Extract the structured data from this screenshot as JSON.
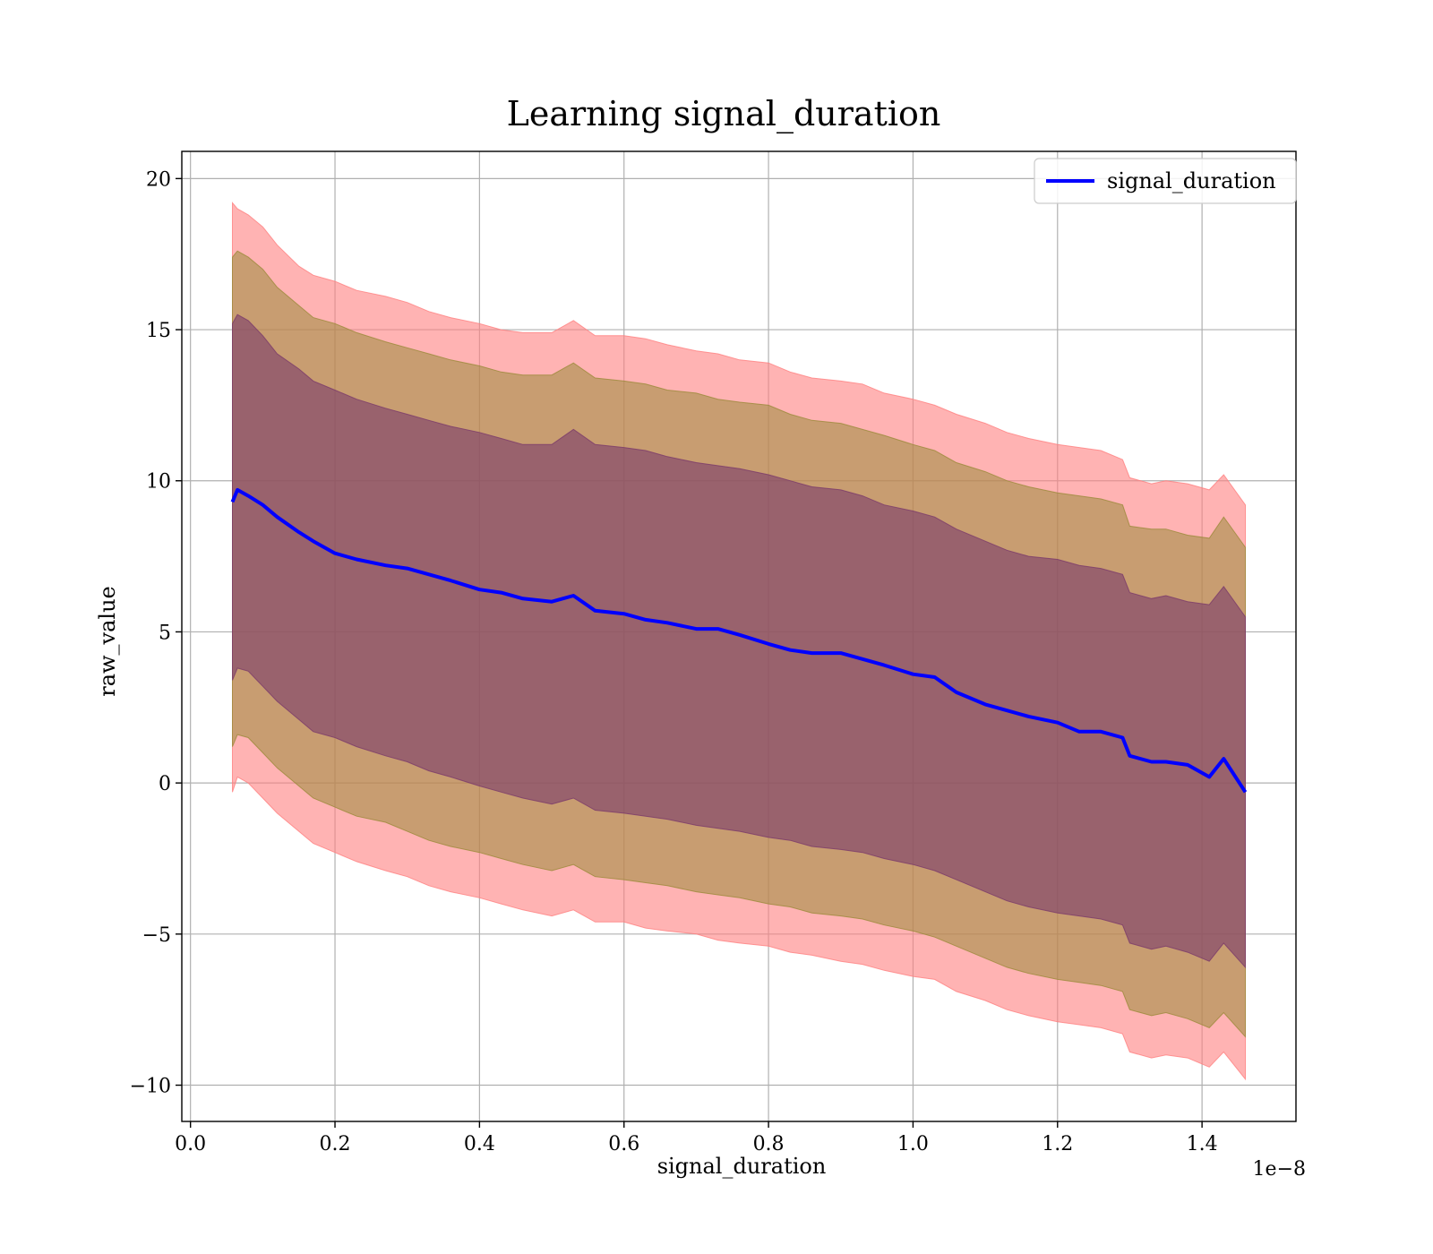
{
  "chart_data": {
    "type": "line",
    "title": "Learning signal_duration",
    "xlabel": "signal_duration",
    "ylabel": "raw_value",
    "x_offset_text": "1e−8",
    "xlim": [
      -0.012,
      1.53
    ],
    "ylim": [
      -11.2,
      20.9
    ],
    "xticks": [
      0.0,
      0.2,
      0.4,
      0.6,
      0.8,
      1.0,
      1.2,
      1.4
    ],
    "xtick_labels": [
      "0.0",
      "0.2",
      "0.4",
      "0.6",
      "0.8",
      "1.0",
      "1.2",
      "1.4"
    ],
    "yticks": [
      -10,
      -5,
      0,
      5,
      10,
      15,
      20
    ],
    "ytick_labels": [
      "−10",
      "−5",
      "0",
      "5",
      "10",
      "15",
      "20"
    ],
    "grid": true,
    "legend_position": "top-right",
    "colors": {
      "line": "#0000ff",
      "band_outer": "#ff8080",
      "band_middle": "#9b8a3a",
      "band_inner": "#7a3a6a"
    },
    "series": [
      {
        "name": "signal_duration",
        "x": [
          0.058,
          0.065,
          0.08,
          0.1,
          0.12,
          0.15,
          0.17,
          0.2,
          0.23,
          0.27,
          0.3,
          0.33,
          0.36,
          0.4,
          0.43,
          0.46,
          0.5,
          0.53,
          0.56,
          0.6,
          0.63,
          0.66,
          0.7,
          0.73,
          0.76,
          0.8,
          0.83,
          0.86,
          0.9,
          0.93,
          0.96,
          1.0,
          1.03,
          1.06,
          1.1,
          1.13,
          1.16,
          1.2,
          1.23,
          1.26,
          1.29,
          1.3,
          1.33,
          1.35,
          1.38,
          1.41,
          1.43,
          1.46
        ],
        "y": [
          9.3,
          9.7,
          9.5,
          9.2,
          8.8,
          8.3,
          8.0,
          7.6,
          7.4,
          7.2,
          7.1,
          6.9,
          6.7,
          6.4,
          6.3,
          6.1,
          6.0,
          6.2,
          5.7,
          5.6,
          5.4,
          5.3,
          5.1,
          5.1,
          4.9,
          4.6,
          4.4,
          4.3,
          4.3,
          4.1,
          3.9,
          3.6,
          3.5,
          3.0,
          2.6,
          2.4,
          2.2,
          2.0,
          1.7,
          1.7,
          1.5,
          0.9,
          0.7,
          0.7,
          0.6,
          0.2,
          0.8,
          -0.3
        ],
        "bands": [
          {
            "name": "outer",
            "upper": [
              19.2,
              19.0,
              18.8,
              18.4,
              17.8,
              17.1,
              16.8,
              16.6,
              16.3,
              16.1,
              15.9,
              15.6,
              15.4,
              15.2,
              15.0,
              14.9,
              14.9,
              15.3,
              14.8,
              14.8,
              14.7,
              14.5,
              14.3,
              14.2,
              14.0,
              13.9,
              13.6,
              13.4,
              13.3,
              13.2,
              12.9,
              12.7,
              12.5,
              12.2,
              11.9,
              11.6,
              11.4,
              11.2,
              11.1,
              11.0,
              10.7,
              10.1,
              9.9,
              10.0,
              9.9,
              9.7,
              10.2,
              9.2
            ],
            "lower": [
              -0.3,
              0.2,
              0.0,
              -0.5,
              -1.0,
              -1.6,
              -2.0,
              -2.3,
              -2.6,
              -2.9,
              -3.1,
              -3.4,
              -3.6,
              -3.8,
              -4.0,
              -4.2,
              -4.4,
              -4.2,
              -4.6,
              -4.6,
              -4.8,
              -4.9,
              -5.0,
              -5.2,
              -5.3,
              -5.4,
              -5.6,
              -5.7,
              -5.9,
              -6.0,
              -6.2,
              -6.4,
              -6.5,
              -6.9,
              -7.2,
              -7.5,
              -7.7,
              -7.9,
              -8.0,
              -8.1,
              -8.3,
              -8.9,
              -9.1,
              -9.0,
              -9.1,
              -9.4,
              -8.9,
              -9.8
            ]
          },
          {
            "name": "middle",
            "upper": [
              17.4,
              17.6,
              17.4,
              17.0,
              16.4,
              15.8,
              15.4,
              15.2,
              14.9,
              14.6,
              14.4,
              14.2,
              14.0,
              13.8,
              13.6,
              13.5,
              13.5,
              13.9,
              13.4,
              13.3,
              13.2,
              13.0,
              12.9,
              12.7,
              12.6,
              12.5,
              12.2,
              12.0,
              11.9,
              11.7,
              11.5,
              11.2,
              11.0,
              10.6,
              10.3,
              10.0,
              9.8,
              9.6,
              9.5,
              9.4,
              9.2,
              8.5,
              8.4,
              8.4,
              8.2,
              8.1,
              8.8,
              7.8
            ],
            "lower": [
              1.2,
              1.6,
              1.5,
              1.0,
              0.5,
              -0.1,
              -0.5,
              -0.8,
              -1.1,
              -1.3,
              -1.6,
              -1.9,
              -2.1,
              -2.3,
              -2.5,
              -2.7,
              -2.9,
              -2.7,
              -3.1,
              -3.2,
              -3.3,
              -3.4,
              -3.6,
              -3.7,
              -3.8,
              -4.0,
              -4.1,
              -4.3,
              -4.4,
              -4.5,
              -4.7,
              -4.9,
              -5.1,
              -5.4,
              -5.8,
              -6.1,
              -6.3,
              -6.5,
              -6.6,
              -6.7,
              -6.9,
              -7.5,
              -7.7,
              -7.6,
              -7.8,
              -8.1,
              -7.6,
              -8.4
            ]
          },
          {
            "name": "inner",
            "upper": [
              15.2,
              15.5,
              15.3,
              14.8,
              14.2,
              13.7,
              13.3,
              13.0,
              12.7,
              12.4,
              12.2,
              12.0,
              11.8,
              11.6,
              11.4,
              11.2,
              11.2,
              11.7,
              11.2,
              11.1,
              11.0,
              10.8,
              10.6,
              10.5,
              10.4,
              10.2,
              10.0,
              9.8,
              9.7,
              9.5,
              9.2,
              9.0,
              8.8,
              8.4,
              8.0,
              7.7,
              7.5,
              7.4,
              7.2,
              7.1,
              6.9,
              6.3,
              6.1,
              6.2,
              6.0,
              5.9,
              6.5,
              5.5
            ],
            "lower": [
              3.4,
              3.8,
              3.7,
              3.2,
              2.7,
              2.1,
              1.7,
              1.5,
              1.2,
              0.9,
              0.7,
              0.4,
              0.2,
              -0.1,
              -0.3,
              -0.5,
              -0.7,
              -0.5,
              -0.9,
              -1.0,
              -1.1,
              -1.2,
              -1.4,
              -1.5,
              -1.6,
              -1.8,
              -1.9,
              -2.1,
              -2.2,
              -2.3,
              -2.5,
              -2.7,
              -2.9,
              -3.2,
              -3.6,
              -3.9,
              -4.1,
              -4.3,
              -4.4,
              -4.5,
              -4.7,
              -5.3,
              -5.5,
              -5.4,
              -5.6,
              -5.9,
              -5.3,
              -6.1
            ]
          }
        ]
      }
    ]
  }
}
